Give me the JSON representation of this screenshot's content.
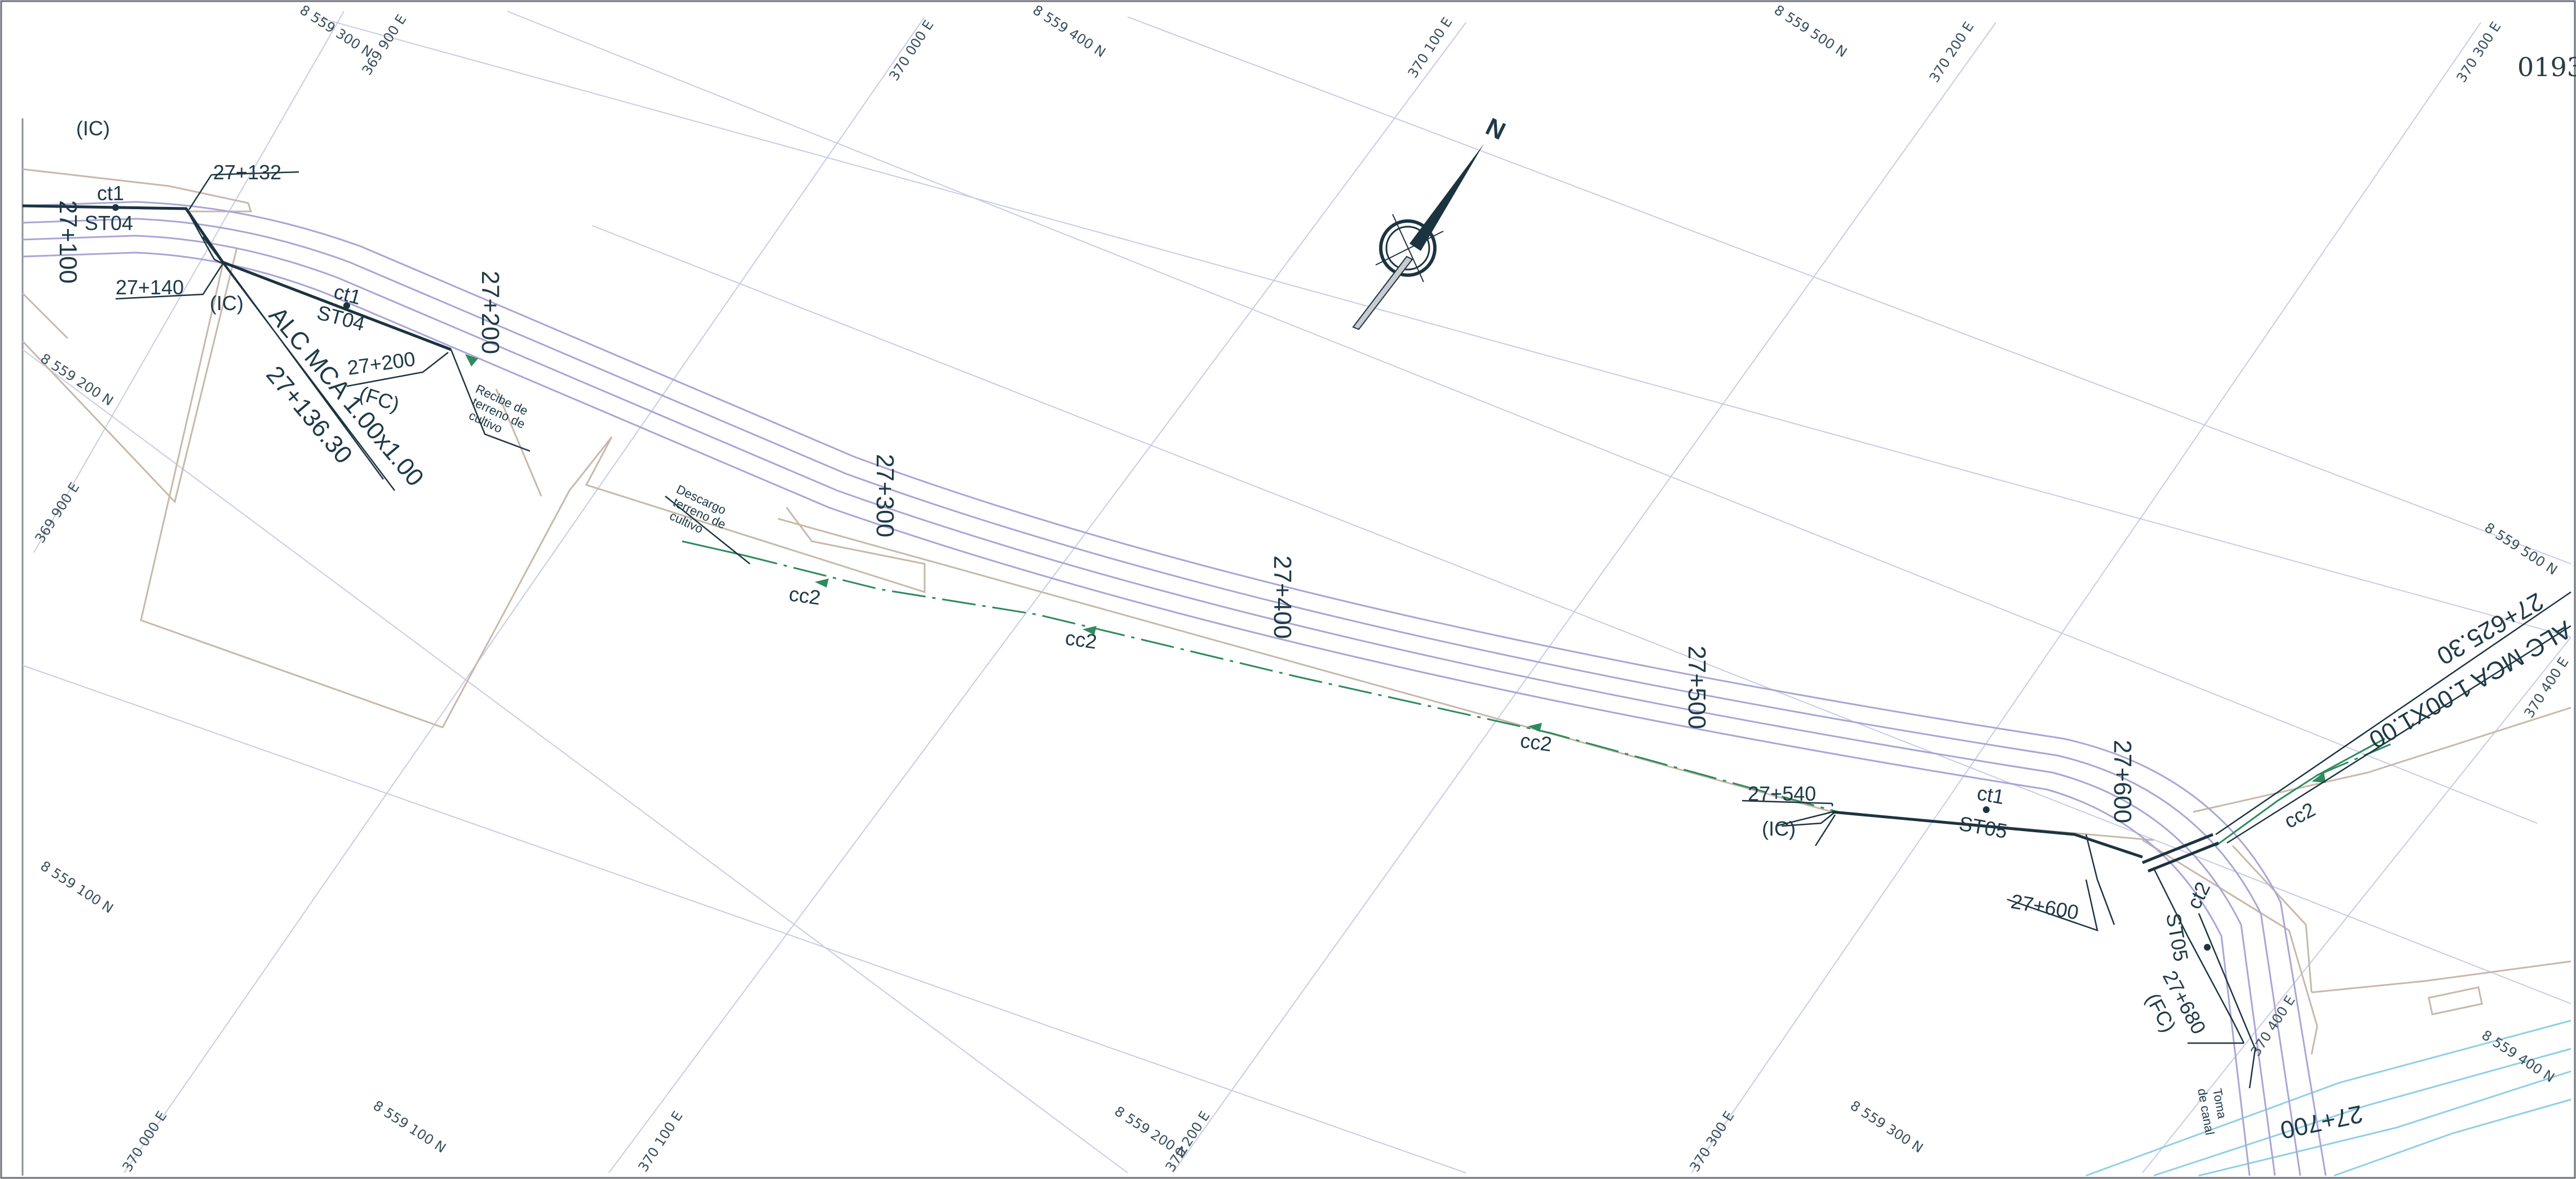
{
  "sheet_number": "0193",
  "north_label": "N",
  "grid_labels": {
    "n_559300_top": "8 559 300 N",
    "e_369900_top": "369 900 E",
    "e_370000_top": "370 000 E",
    "n_559400_top": "8 559 400 N",
    "e_370100_top": "370 100 E",
    "n_559500_top": "8 559 500 N",
    "e_370200_top": "370 200 E",
    "e_370300_top": "370 300 E",
    "n_559200_left": "8 559 200 N",
    "e_369900_left": "369 900 E",
    "n_559100_left": "8 559 100 N",
    "n_559500_right": "8 559 500 N",
    "e_370400_right": "370 400 E",
    "e_370000_bottom": "370 000 E",
    "n_559100_bottom": "8 559 100 N",
    "e_370100_bottom": "370 100 E",
    "n_559200_bottom": "8 559 200 N",
    "e_370200_bottom": "370 200 E",
    "e_370300_bottom": "370 300 E",
    "n_559300_bottom": "8 559 300 N",
    "e_370400_bottom": "370 400 E",
    "n_559400_bottom": "8 559 400 N"
  },
  "stations": {
    "s27100": "27+100",
    "s27200_axis": "27+200",
    "s27300": "27+300",
    "s27400": "27+400",
    "s27500": "27+500",
    "s27600_axis": "27+600",
    "s27700": "27+700"
  },
  "callouts": {
    "ic_top_left": "(IC)",
    "s27132": "27+132",
    "ct1_a": "ct1",
    "st04_a": "ST04",
    "s27140": "27+140",
    "ic_a": "(IC)",
    "ct1_b": "ct1",
    "st04_b": "ST04",
    "s27200_box": "27+200",
    "fc_a": "(FC)",
    "alc_left": "ALC MCA 1.00x1.00",
    "s27136": "27+136.30",
    "recibe_1": "Recibe de",
    "recibe_2": "terreno de",
    "recibe_3": "cultivo",
    "descargo_1": "Descargo",
    "descargo_2": "terreno de",
    "descargo_3": "cultivo",
    "cc2_a": "cc2",
    "cc2_b": "cc2",
    "cc2_c": "cc2",
    "s27540": "27+540",
    "ic_b": "(IC)",
    "ct1_c": "ct1",
    "st05_a": "ST05",
    "s27600_box": "27+600",
    "st05_b": "ST05",
    "ct2": "ct2",
    "s27680": "27+680",
    "fc_b": "(FC)",
    "toma_1": "Toma",
    "toma_2": "de canal",
    "alc_right_1": "ALC MCA 1.00X1.00",
    "alc_right_2": "27+625.30",
    "cc2_d": "cc2"
  }
}
